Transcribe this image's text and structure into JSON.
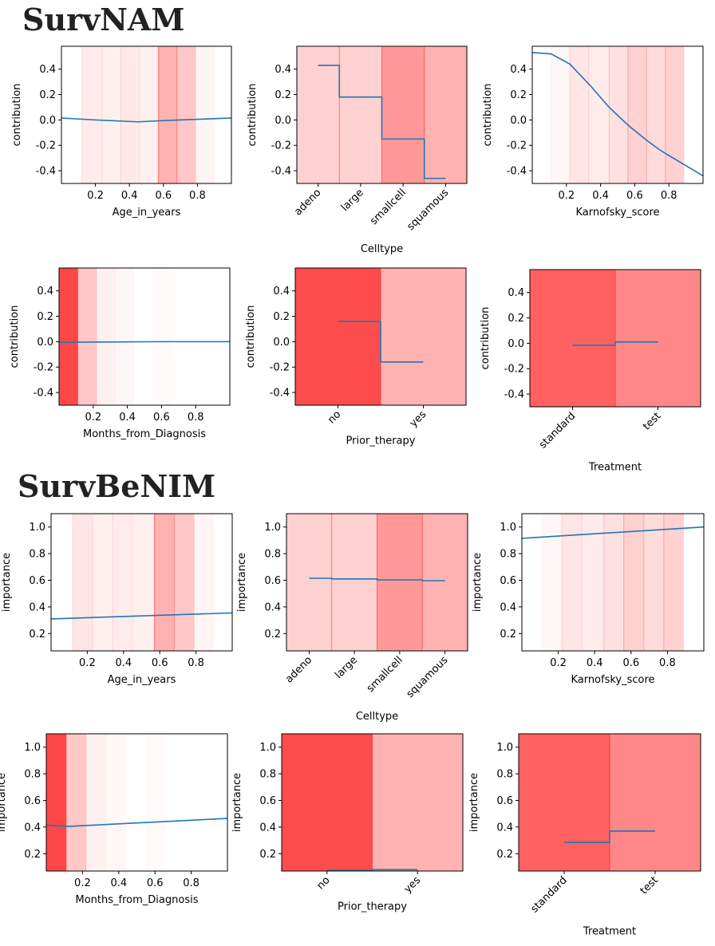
{
  "sections": [
    {
      "title": "SurvNAM"
    },
    {
      "title": "SurvBeNIM"
    }
  ],
  "colors": {
    "line": "#1f77b4",
    "shade": "#ff0000",
    "axis": "#000000"
  },
  "chart_data": [
    {
      "type": "line",
      "section": "SurvNAM",
      "xlabel": "Age_in_years",
      "ylabel": "contribution",
      "xlim": [
        0.0,
        1.0
      ],
      "ylim": [
        -0.5,
        0.58
      ],
      "xticks": [
        0.2,
        0.4,
        0.6,
        0.8
      ],
      "yticks": [
        -0.4,
        -0.2,
        0.0,
        0.2,
        0.4
      ],
      "bands": [
        {
          "from": 0.12,
          "to": 0.24,
          "alpha": 0.08
        },
        {
          "from": 0.24,
          "to": 0.35,
          "alpha": 0.06
        },
        {
          "from": 0.35,
          "to": 0.46,
          "alpha": 0.09
        },
        {
          "from": 0.46,
          "to": 0.57,
          "alpha": 0.06
        },
        {
          "from": 0.57,
          "to": 0.68,
          "alpha": 0.3
        },
        {
          "from": 0.68,
          "to": 0.79,
          "alpha": 0.22
        },
        {
          "from": 0.79,
          "to": 0.9,
          "alpha": 0.04
        }
      ],
      "x": [
        0.0,
        0.2,
        0.45,
        0.6,
        0.8,
        1.0
      ],
      "y": [
        0.015,
        0.0,
        -0.015,
        -0.005,
        0.005,
        0.015
      ]
    },
    {
      "type": "step",
      "section": "SurvNAM",
      "xlabel": "Celltype",
      "ylabel": "contribution",
      "categories": [
        "adeno",
        "large",
        "smallcell",
        "squamous"
      ],
      "ylim": [
        -0.5,
        0.58
      ],
      "yticks": [
        -0.4,
        -0.2,
        0.0,
        0.2,
        0.4
      ],
      "band_alpha": [
        0.18,
        0.18,
        0.4,
        0.3
      ],
      "values": [
        0.43,
        0.18,
        -0.15,
        -0.46
      ]
    },
    {
      "type": "line",
      "section": "SurvNAM",
      "xlabel": "Karnofsky_score",
      "ylabel": "contribution",
      "xlim": [
        0.0,
        1.0
      ],
      "ylim": [
        -0.5,
        0.58
      ],
      "xticks": [
        0.2,
        0.4,
        0.6,
        0.8
      ],
      "yticks": [
        -0.4,
        -0.2,
        0.0,
        0.2,
        0.4
      ],
      "bands": [
        {
          "from": 0.11,
          "to": 0.22,
          "alpha": 0.03
        },
        {
          "from": 0.22,
          "to": 0.33,
          "alpha": 0.1
        },
        {
          "from": 0.33,
          "to": 0.45,
          "alpha": 0.08
        },
        {
          "from": 0.45,
          "to": 0.56,
          "alpha": 0.12
        },
        {
          "from": 0.56,
          "to": 0.67,
          "alpha": 0.18
        },
        {
          "from": 0.67,
          "to": 0.78,
          "alpha": 0.14
        },
        {
          "from": 0.78,
          "to": 0.89,
          "alpha": 0.18
        }
      ],
      "x": [
        0.0,
        0.11,
        0.22,
        0.34,
        0.45,
        0.56,
        0.67,
        0.74,
        0.8,
        0.9,
        1.0
      ],
      "y": [
        0.53,
        0.52,
        0.44,
        0.27,
        0.1,
        -0.04,
        -0.16,
        -0.23,
        -0.28,
        -0.36,
        -0.44
      ]
    },
    {
      "type": "line",
      "section": "SurvNAM",
      "xlabel": "Months_from_Diagnosis",
      "ylabel": "contribution",
      "xlim": [
        0.0,
        1.0
      ],
      "ylim": [
        -0.5,
        0.58
      ],
      "xticks": [
        0.2,
        0.4,
        0.6,
        0.8
      ],
      "yticks": [
        -0.4,
        -0.2,
        0.0,
        0.2,
        0.4
      ],
      "bands": [
        {
          "from": 0.0,
          "to": 0.11,
          "alpha": 0.72
        },
        {
          "from": 0.11,
          "to": 0.22,
          "alpha": 0.22
        },
        {
          "from": 0.22,
          "to": 0.33,
          "alpha": 0.06
        },
        {
          "from": 0.33,
          "to": 0.44,
          "alpha": 0.03
        },
        {
          "from": 0.55,
          "to": 0.66,
          "alpha": 0.015
        }
      ],
      "x": [
        0.0,
        0.2,
        0.6,
        1.0
      ],
      "y": [
        -0.005,
        -0.003,
        0.0,
        0.0
      ]
    },
    {
      "type": "step",
      "section": "SurvNAM",
      "xlabel": "Prior_therapy",
      "ylabel": "contribution",
      "categories": [
        "no",
        "yes"
      ],
      "ylim": [
        -0.5,
        0.58
      ],
      "yticks": [
        -0.4,
        -0.2,
        0.0,
        0.2,
        0.4
      ],
      "band_alpha": [
        0.7,
        0.3
      ],
      "values": [
        0.16,
        -0.16
      ]
    },
    {
      "type": "step",
      "section": "SurvNAM",
      "xlabel": "Treatment",
      "ylabel": "contribution",
      "categories": [
        "standard",
        "test"
      ],
      "ylim": [
        -0.5,
        0.58
      ],
      "yticks": [
        -0.4,
        -0.2,
        0.0,
        0.2,
        0.4
      ],
      "band_alpha": [
        0.62,
        0.47
      ],
      "values": [
        -0.015,
        0.01
      ]
    },
    {
      "type": "line",
      "section": "SurvBeNIM",
      "xlabel": "Age_in_years",
      "ylabel": "importance",
      "xlim": [
        0.0,
        1.0
      ],
      "ylim": [
        0.07,
        1.1
      ],
      "xticks": [
        0.2,
        0.4,
        0.6,
        0.8
      ],
      "yticks": [
        0.2,
        0.4,
        0.6,
        0.8,
        1.0
      ],
      "bands": [
        {
          "from": 0.12,
          "to": 0.23,
          "alpha": 0.1
        },
        {
          "from": 0.23,
          "to": 0.34,
          "alpha": 0.06
        },
        {
          "from": 0.34,
          "to": 0.45,
          "alpha": 0.08
        },
        {
          "from": 0.45,
          "to": 0.57,
          "alpha": 0.06
        },
        {
          "from": 0.57,
          "to": 0.68,
          "alpha": 0.3
        },
        {
          "from": 0.68,
          "to": 0.79,
          "alpha": 0.22
        },
        {
          "from": 0.79,
          "to": 0.9,
          "alpha": 0.04
        }
      ],
      "x": [
        0.0,
        1.0
      ],
      "y": [
        0.31,
        0.355
      ]
    },
    {
      "type": "step",
      "section": "SurvBeNIM",
      "xlabel": "Celltype",
      "ylabel": "importance",
      "categories": [
        "adeno",
        "large",
        "smallcell",
        "squamous"
      ],
      "ylim": [
        0.07,
        1.1
      ],
      "yticks": [
        0.2,
        0.4,
        0.6,
        0.8,
        1.0
      ],
      "band_alpha": [
        0.18,
        0.18,
        0.4,
        0.3
      ],
      "values": [
        0.615,
        0.61,
        0.603,
        0.597
      ]
    },
    {
      "type": "line",
      "section": "SurvBeNIM",
      "xlabel": "Karnofsky_score",
      "ylabel": "importance",
      "xlim": [
        0.0,
        1.0
      ],
      "ylim": [
        0.07,
        1.1
      ],
      "xticks": [
        0.2,
        0.4,
        0.6,
        0.8
      ],
      "yticks": [
        0.2,
        0.4,
        0.6,
        0.8,
        1.0
      ],
      "bands": [
        {
          "from": 0.11,
          "to": 0.22,
          "alpha": 0.03
        },
        {
          "from": 0.22,
          "to": 0.33,
          "alpha": 0.1
        },
        {
          "from": 0.33,
          "to": 0.45,
          "alpha": 0.08
        },
        {
          "from": 0.45,
          "to": 0.56,
          "alpha": 0.12
        },
        {
          "from": 0.56,
          "to": 0.67,
          "alpha": 0.18
        },
        {
          "from": 0.67,
          "to": 0.78,
          "alpha": 0.14
        },
        {
          "from": 0.78,
          "to": 0.89,
          "alpha": 0.18
        }
      ],
      "x": [
        0.0,
        1.0
      ],
      "y": [
        0.915,
        1.0
      ]
    },
    {
      "type": "line",
      "section": "SurvBeNIM",
      "xlabel": "Months_from_Diagnosis",
      "ylabel": "importance",
      "xlim": [
        0.0,
        1.0
      ],
      "ylim": [
        0.07,
        1.1
      ],
      "xticks": [
        0.2,
        0.4,
        0.6,
        0.8
      ],
      "yticks": [
        0.2,
        0.4,
        0.6,
        0.8,
        1.0
      ],
      "bands": [
        {
          "from": 0.0,
          "to": 0.11,
          "alpha": 0.72
        },
        {
          "from": 0.11,
          "to": 0.22,
          "alpha": 0.22
        },
        {
          "from": 0.22,
          "to": 0.33,
          "alpha": 0.06
        },
        {
          "from": 0.33,
          "to": 0.44,
          "alpha": 0.03
        },
        {
          "from": 0.55,
          "to": 0.66,
          "alpha": 0.015
        }
      ],
      "x": [
        0.0,
        0.12,
        1.0
      ],
      "y": [
        0.415,
        0.405,
        0.465
      ]
    },
    {
      "type": "step",
      "section": "SurvBeNIM",
      "xlabel": "Prior_therapy",
      "ylabel": "importance",
      "categories": [
        "no",
        "yes"
      ],
      "ylim": [
        0.07,
        1.1
      ],
      "yticks": [
        0.2,
        0.4,
        0.6,
        0.8,
        1.0
      ],
      "band_alpha": [
        0.7,
        0.3
      ],
      "values": [
        0.075,
        0.08
      ]
    },
    {
      "type": "step",
      "section": "SurvBeNIM",
      "xlabel": "Treatment",
      "ylabel": "importance",
      "categories": [
        "standard",
        "test"
      ],
      "ylim": [
        0.07,
        1.1
      ],
      "yticks": [
        0.2,
        0.4,
        0.6,
        0.8,
        1.0
      ],
      "band_alpha": [
        0.62,
        0.47
      ],
      "values": [
        0.285,
        0.37
      ]
    }
  ]
}
